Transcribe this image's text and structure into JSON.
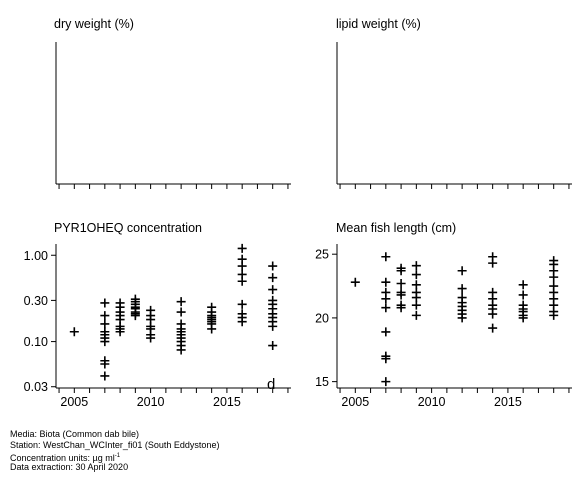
{
  "chart_data": [
    {
      "type": "scatter",
      "title": "dry weight (%)",
      "xlim": [
        2003.8,
        2019.2
      ],
      "ylim": [
        0,
        1
      ],
      "x_ticks": [
        2004,
        2005,
        2006,
        2007,
        2008,
        2009,
        2010,
        2011,
        2012,
        2013,
        2014,
        2015,
        2016,
        2017,
        2018,
        2019
      ],
      "x_tick_labels": [],
      "y_ticks": [],
      "y_tick_labels": [],
      "points": []
    },
    {
      "type": "scatter",
      "title": "lipid weight (%)",
      "xlim": [
        2003.8,
        2019.2
      ],
      "ylim": [
        0,
        1
      ],
      "x_ticks": [
        2004,
        2005,
        2006,
        2007,
        2008,
        2009,
        2010,
        2011,
        2012,
        2013,
        2014,
        2015,
        2016,
        2017,
        2018,
        2019
      ],
      "x_tick_labels": [],
      "y_ticks": [],
      "y_tick_labels": [],
      "points": []
    },
    {
      "type": "scatter",
      "title": "PYR1OHEQ concentration",
      "y_scale": "log",
      "xlim": [
        2003.8,
        2019.2
      ],
      "ylim": [
        0.029,
        1.35
      ],
      "x_ticks": [
        2004,
        2005,
        2006,
        2007,
        2008,
        2009,
        2010,
        2011,
        2012,
        2013,
        2014,
        2015,
        2016,
        2017,
        2018,
        2019
      ],
      "x_tick_labels": [
        {
          "value": 2005,
          "label": "2005"
        },
        {
          "value": 2010,
          "label": "2010"
        },
        {
          "value": 2015,
          "label": "2015"
        }
      ],
      "y_ticks": [
        1.0,
        0.3,
        0.1,
        0.03
      ],
      "y_tick_labels": [
        "1.00",
        "0.30",
        "0.10",
        "0.03"
      ],
      "annotation": {
        "text": "d",
        "x": 2017.9,
        "y": 0.033
      },
      "points": [
        {
          "x": 2005,
          "y": 0.13
        },
        {
          "x": 2007,
          "y": 0.28
        },
        {
          "x": 2007,
          "y": 0.2
        },
        {
          "x": 2007,
          "y": 0.16
        },
        {
          "x": 2007,
          "y": 0.13
        },
        {
          "x": 2007,
          "y": 0.12
        },
        {
          "x": 2007,
          "y": 0.11
        },
        {
          "x": 2007,
          "y": 0.1
        },
        {
          "x": 2007,
          "y": 0.06
        },
        {
          "x": 2007,
          "y": 0.055
        },
        {
          "x": 2007,
          "y": 0.04
        },
        {
          "x": 2008,
          "y": 0.28
        },
        {
          "x": 2008,
          "y": 0.25
        },
        {
          "x": 2008,
          "y": 0.22
        },
        {
          "x": 2008,
          "y": 0.2
        },
        {
          "x": 2008,
          "y": 0.18
        },
        {
          "x": 2008,
          "y": 0.15
        },
        {
          "x": 2008,
          "y": 0.14
        },
        {
          "x": 2008,
          "y": 0.13
        },
        {
          "x": 2009,
          "y": 0.31
        },
        {
          "x": 2009,
          "y": 0.29
        },
        {
          "x": 2009,
          "y": 0.27
        },
        {
          "x": 2009,
          "y": 0.25
        },
        {
          "x": 2009,
          "y": 0.24
        },
        {
          "x": 2009,
          "y": 0.22
        },
        {
          "x": 2009,
          "y": 0.21
        },
        {
          "x": 2009,
          "y": 0.2
        },
        {
          "x": 2010,
          "y": 0.23
        },
        {
          "x": 2010,
          "y": 0.2
        },
        {
          "x": 2010,
          "y": 0.18
        },
        {
          "x": 2010,
          "y": 0.15
        },
        {
          "x": 2010,
          "y": 0.14
        },
        {
          "x": 2010,
          "y": 0.12
        },
        {
          "x": 2010,
          "y": 0.11
        },
        {
          "x": 2012,
          "y": 0.29
        },
        {
          "x": 2012,
          "y": 0.22
        },
        {
          "x": 2012,
          "y": 0.16
        },
        {
          "x": 2012,
          "y": 0.14
        },
        {
          "x": 2012,
          "y": 0.13
        },
        {
          "x": 2012,
          "y": 0.12
        },
        {
          "x": 2012,
          "y": 0.11
        },
        {
          "x": 2012,
          "y": 0.1
        },
        {
          "x": 2012,
          "y": 0.09
        },
        {
          "x": 2012,
          "y": 0.08
        },
        {
          "x": 2014,
          "y": 0.25
        },
        {
          "x": 2014,
          "y": 0.22
        },
        {
          "x": 2014,
          "y": 0.2
        },
        {
          "x": 2014,
          "y": 0.19
        },
        {
          "x": 2014,
          "y": 0.18
        },
        {
          "x": 2014,
          "y": 0.17
        },
        {
          "x": 2014,
          "y": 0.16
        },
        {
          "x": 2014,
          "y": 0.14
        },
        {
          "x": 2016,
          "y": 1.2
        },
        {
          "x": 2016,
          "y": 0.9
        },
        {
          "x": 2016,
          "y": 0.75
        },
        {
          "x": 2016,
          "y": 0.6
        },
        {
          "x": 2016,
          "y": 0.5
        },
        {
          "x": 2016,
          "y": 0.27
        },
        {
          "x": 2016,
          "y": 0.21
        },
        {
          "x": 2016,
          "y": 0.19
        },
        {
          "x": 2016,
          "y": 0.17
        },
        {
          "x": 2018,
          "y": 0.75
        },
        {
          "x": 2018,
          "y": 0.55
        },
        {
          "x": 2018,
          "y": 0.4
        },
        {
          "x": 2018,
          "y": 0.3
        },
        {
          "x": 2018,
          "y": 0.27
        },
        {
          "x": 2018,
          "y": 0.24
        },
        {
          "x": 2018,
          "y": 0.21
        },
        {
          "x": 2018,
          "y": 0.19
        },
        {
          "x": 2018,
          "y": 0.17
        },
        {
          "x": 2018,
          "y": 0.15
        },
        {
          "x": 2018,
          "y": 0.09
        }
      ]
    },
    {
      "type": "scatter",
      "title": "Mean fish length (cm)",
      "xlim": [
        2003.8,
        2019.2
      ],
      "ylim": [
        14.5,
        25.8
      ],
      "x_ticks": [
        2004,
        2005,
        2006,
        2007,
        2008,
        2009,
        2010,
        2011,
        2012,
        2013,
        2014,
        2015,
        2016,
        2017,
        2018,
        2019
      ],
      "x_tick_labels": [
        {
          "value": 2005,
          "label": "2005"
        },
        {
          "value": 2010,
          "label": "2010"
        },
        {
          "value": 2015,
          "label": "2015"
        }
      ],
      "y_ticks": [
        25,
        20,
        15
      ],
      "y_tick_labels": [
        "25",
        "20",
        "15"
      ],
      "points": [
        {
          "x": 2005,
          "y": 22.8
        },
        {
          "x": 2007,
          "y": 24.8
        },
        {
          "x": 2007,
          "y": 22.8
        },
        {
          "x": 2007,
          "y": 22.0
        },
        {
          "x": 2007,
          "y": 21.5
        },
        {
          "x": 2007,
          "y": 20.8
        },
        {
          "x": 2007,
          "y": 18.9
        },
        {
          "x": 2007,
          "y": 17.0
        },
        {
          "x": 2007,
          "y": 16.8
        },
        {
          "x": 2007,
          "y": 15.0
        },
        {
          "x": 2008,
          "y": 23.9
        },
        {
          "x": 2008,
          "y": 23.7
        },
        {
          "x": 2008,
          "y": 22.7
        },
        {
          "x": 2008,
          "y": 22.0
        },
        {
          "x": 2008,
          "y": 21.8
        },
        {
          "x": 2008,
          "y": 21.0
        },
        {
          "x": 2008,
          "y": 20.8
        },
        {
          "x": 2009,
          "y": 24.1
        },
        {
          "x": 2009,
          "y": 23.4
        },
        {
          "x": 2009,
          "y": 22.6
        },
        {
          "x": 2009,
          "y": 22.0
        },
        {
          "x": 2009,
          "y": 21.6
        },
        {
          "x": 2009,
          "y": 21.0
        },
        {
          "x": 2009,
          "y": 20.2
        },
        {
          "x": 2012,
          "y": 23.7
        },
        {
          "x": 2012,
          "y": 22.3
        },
        {
          "x": 2012,
          "y": 21.6
        },
        {
          "x": 2012,
          "y": 21.2
        },
        {
          "x": 2012,
          "y": 20.9
        },
        {
          "x": 2012,
          "y": 20.6
        },
        {
          "x": 2012,
          "y": 20.3
        },
        {
          "x": 2012,
          "y": 20.0
        },
        {
          "x": 2014,
          "y": 24.8
        },
        {
          "x": 2014,
          "y": 24.3
        },
        {
          "x": 2014,
          "y": 22.0
        },
        {
          "x": 2014,
          "y": 21.5
        },
        {
          "x": 2014,
          "y": 21.0
        },
        {
          "x": 2014,
          "y": 20.7
        },
        {
          "x": 2014,
          "y": 20.3
        },
        {
          "x": 2014,
          "y": 19.2
        },
        {
          "x": 2016,
          "y": 22.6
        },
        {
          "x": 2016,
          "y": 21.8
        },
        {
          "x": 2016,
          "y": 21.0
        },
        {
          "x": 2016,
          "y": 20.7
        },
        {
          "x": 2016,
          "y": 20.5
        },
        {
          "x": 2016,
          "y": 20.2
        },
        {
          "x": 2016,
          "y": 20.0
        },
        {
          "x": 2018,
          "y": 24.5
        },
        {
          "x": 2018,
          "y": 24.2
        },
        {
          "x": 2018,
          "y": 23.7
        },
        {
          "x": 2018,
          "y": 23.2
        },
        {
          "x": 2018,
          "y": 22.5
        },
        {
          "x": 2018,
          "y": 22.0
        },
        {
          "x": 2018,
          "y": 21.5
        },
        {
          "x": 2018,
          "y": 21.0
        },
        {
          "x": 2018,
          "y": 20.5
        },
        {
          "x": 2018,
          "y": 20.2
        }
      ]
    }
  ],
  "footer": {
    "media": "Media: Biota (Common dab bile)",
    "station": "Station: WestChan_WCInter_fi01 (South Eddystone)",
    "units_prefix": "Concentration units:  µg ml",
    "units_exponent": "-1",
    "extraction": "Data extraction: 30 April 2020"
  }
}
